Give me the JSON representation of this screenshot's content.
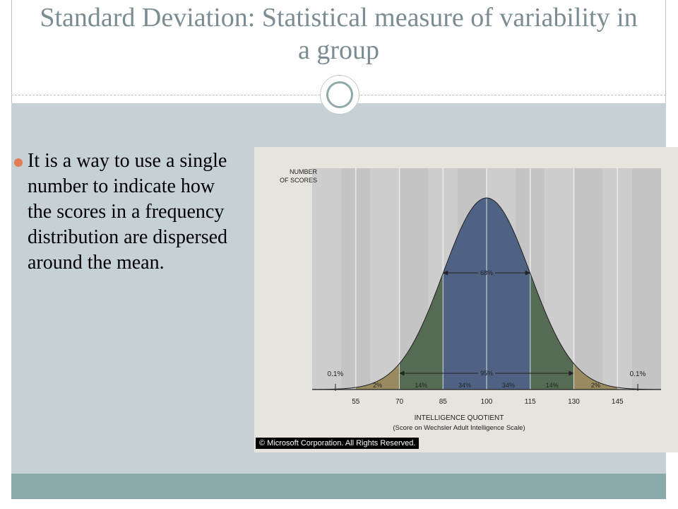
{
  "slide": {
    "title": "Standard Deviation: Statistical measure of variability in a group",
    "bullet": "It is a way to use a single number to indicate how the scores in a frequency distribution are dispersed around the mean.",
    "colors": {
      "title": "#7b8d92",
      "content_bg": "#c6d1d6",
      "footer_bg": "#8aaaaa",
      "bullet_dot": "#e37b54"
    }
  },
  "chart_data": {
    "type": "area",
    "ylabel": "NUMBER OF SCORES",
    "xlabel": "INTELLIGENCE QUOTIENT",
    "xlabel_sub": "(Score on Wechsler Adult Intelligence Scale)",
    "x_ticks": [
      55,
      70,
      85,
      100,
      115,
      130,
      145
    ],
    "xlim": [
      40,
      160
    ],
    "mean": 100,
    "sd": 15,
    "segments": [
      {
        "from": 55,
        "to": 70,
        "label": "2%",
        "color": "#9a8a5f"
      },
      {
        "from": 70,
        "to": 85,
        "label": "14%",
        "color": "#566b54"
      },
      {
        "from": 85,
        "to": 100,
        "label": "34%",
        "color": "#4f6284"
      },
      {
        "from": 100,
        "to": 115,
        "label": "34%",
        "color": "#4f6284"
      },
      {
        "from": 115,
        "to": 130,
        "label": "14%",
        "color": "#566b54"
      },
      {
        "from": 130,
        "to": 145,
        "label": "2%",
        "color": "#9a8a5f"
      }
    ],
    "tails": [
      {
        "x": 48,
        "label": "0.1%"
      },
      {
        "x": 152,
        "label": "0.1%"
      }
    ],
    "ranges": [
      {
        "from": 85,
        "to": 115,
        "label": "68%"
      },
      {
        "from": 70,
        "to": 130,
        "label": "95%"
      }
    ],
    "copyright": "© Microsoft Corporation. All Rights Reserved."
  }
}
